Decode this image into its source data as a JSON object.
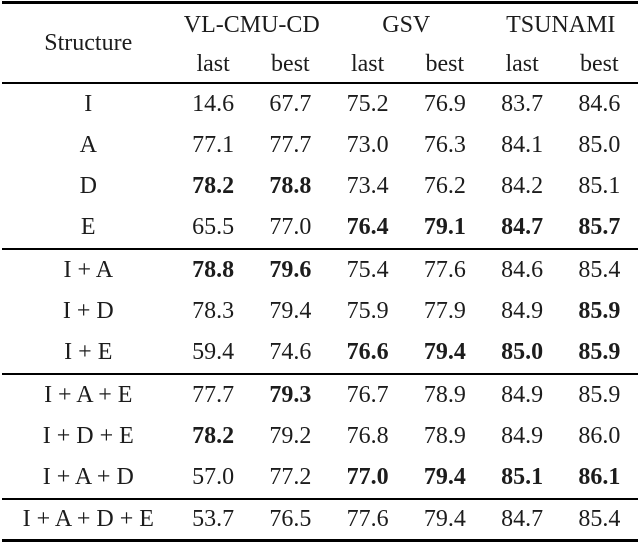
{
  "table": {
    "structure_header": "Structure",
    "column_groups": [
      {
        "label": "VL-CMU-CD",
        "subcolumns": [
          "last",
          "best"
        ]
      },
      {
        "label": "GSV",
        "subcolumns": [
          "last",
          "best"
        ]
      },
      {
        "label": "TSUNAMI",
        "subcolumns": [
          "last",
          "best"
        ]
      }
    ],
    "sections": [
      {
        "rows": [
          {
            "structure": "I",
            "values": [
              "14.6",
              "67.7",
              "75.2",
              "76.9",
              "83.7",
              "84.6"
            ],
            "bold": [
              false,
              false,
              false,
              false,
              false,
              false
            ]
          },
          {
            "structure": "A",
            "values": [
              "77.1",
              "77.7",
              "73.0",
              "76.3",
              "84.1",
              "85.0"
            ],
            "bold": [
              false,
              false,
              false,
              false,
              false,
              false
            ]
          },
          {
            "structure": "D",
            "values": [
              "78.2",
              "78.8",
              "73.4",
              "76.2",
              "84.2",
              "85.1"
            ],
            "bold": [
              true,
              true,
              false,
              false,
              false,
              false
            ]
          },
          {
            "structure": "E",
            "values": [
              "65.5",
              "77.0",
              "76.4",
              "79.1",
              "84.7",
              "85.7"
            ],
            "bold": [
              false,
              false,
              true,
              true,
              true,
              true
            ]
          }
        ]
      },
      {
        "rows": [
          {
            "structure": "I + A",
            "values": [
              "78.8",
              "79.6",
              "75.4",
              "77.6",
              "84.6",
              "85.4"
            ],
            "bold": [
              true,
              true,
              false,
              false,
              false,
              false
            ]
          },
          {
            "structure": "I + D",
            "values": [
              "78.3",
              "79.4",
              "75.9",
              "77.9",
              "84.9",
              "85.9"
            ],
            "bold": [
              false,
              false,
              false,
              false,
              false,
              true
            ]
          },
          {
            "structure": "I + E",
            "values": [
              "59.4",
              "74.6",
              "76.6",
              "79.4",
              "85.0",
              "85.9"
            ],
            "bold": [
              false,
              false,
              true,
              true,
              true,
              true
            ]
          }
        ]
      },
      {
        "rows": [
          {
            "structure": "I + A + E",
            "values": [
              "77.7",
              "79.3",
              "76.7",
              "78.9",
              "84.9",
              "85.9"
            ],
            "bold": [
              false,
              true,
              false,
              false,
              false,
              false
            ]
          },
          {
            "structure": "I + D + E",
            "values": [
              "78.2",
              "79.2",
              "76.8",
              "78.9",
              "84.9",
              "86.0"
            ],
            "bold": [
              true,
              false,
              false,
              false,
              false,
              false
            ]
          },
          {
            "structure": "I + A + D",
            "values": [
              "57.0",
              "77.2",
              "77.0",
              "79.4",
              "85.1",
              "86.1"
            ],
            "bold": [
              false,
              false,
              true,
              true,
              true,
              true
            ]
          }
        ]
      },
      {
        "rows": [
          {
            "structure": "I + A + D + E",
            "values": [
              "53.7",
              "76.5",
              "77.6",
              "79.4",
              "84.7",
              "85.4"
            ],
            "bold": [
              false,
              false,
              false,
              false,
              false,
              false
            ]
          }
        ]
      }
    ],
    "colors": {
      "text": "#1c1c1c",
      "rule": "#000000",
      "background": "#ffffff"
    }
  }
}
